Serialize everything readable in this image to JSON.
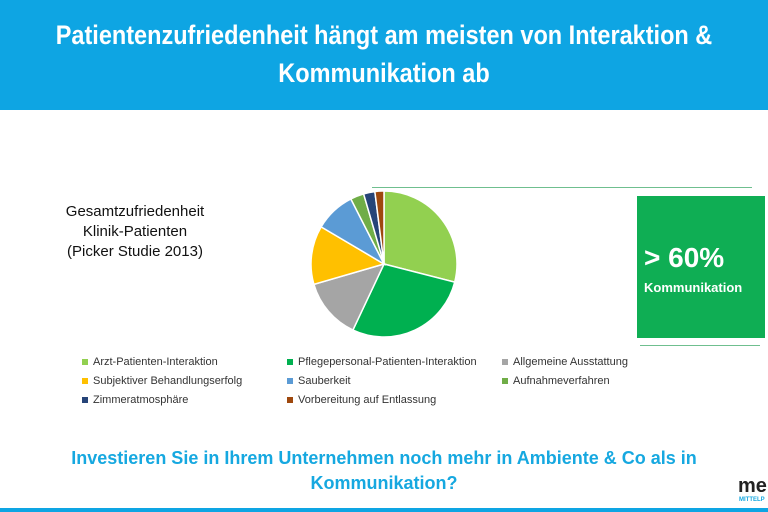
{
  "header": {
    "title": "Patientenzufriedenheit hängt am meisten von Interaktion & Kommunikation ab"
  },
  "subtitle_lines": [
    "Gesamtzufriedenheit",
    "Klinik-Patienten",
    "(Picker Studie 2013)"
  ],
  "highlight": {
    "value": "> 60%",
    "label": "Kommunikation",
    "color": "#0fae54"
  },
  "question": "Investieren Sie in Ihrem Unternehmen noch mehr in Ambiente & Co als in Kommunikation?",
  "logo": {
    "text": "me",
    "subtext": "MITTELP"
  },
  "chart_data": {
    "type": "pie",
    "legend_placement": "bottom",
    "categories": [
      "Arzt-Patienten-Interaktion",
      "Pflegepersonal-Patienten-Interaktion",
      "Allgemeine Ausstattung",
      "Subjektiver Behandlungserfolg",
      "Sauberkeit",
      "Aufnahmeverfahren",
      "Zimmeratmosphäre",
      "Vorbereitung auf Entlassung"
    ],
    "values": [
      29,
      28,
      13.5,
      13,
      9,
      3,
      2.5,
      2
    ],
    "colors": [
      "#92d050",
      "#00b050",
      "#a5a5a5",
      "#ffc000",
      "#5b9bd5",
      "#70ad47",
      "#264478",
      "#9e480e"
    ]
  }
}
